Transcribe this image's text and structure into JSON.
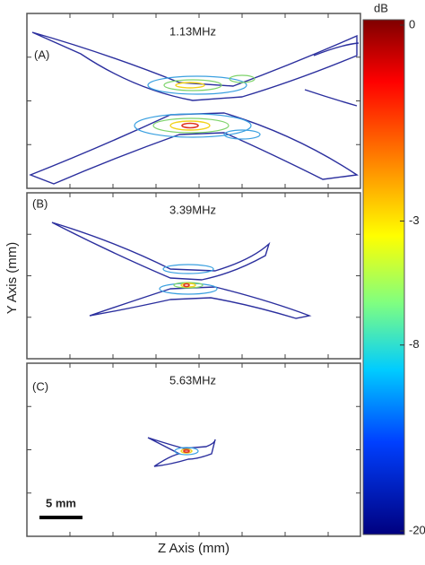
{
  "figure": {
    "panels": [
      {
        "label": "(A)",
        "title": "1.13MHz"
      },
      {
        "label": "(B)",
        "title": "3.39MHz"
      },
      {
        "label": "(C)",
        "title": "5.63MHz"
      }
    ],
    "y_label": "Y Axis (mm)",
    "x_label": "Z Axis (mm)",
    "scale_bar": "5 mm",
    "colorbar": {
      "label": "dB",
      "lim": [
        0,
        -20
      ],
      "ticks": [
        0,
        -3,
        -8,
        -20
      ],
      "scale": "sqrt"
    }
  }
}
